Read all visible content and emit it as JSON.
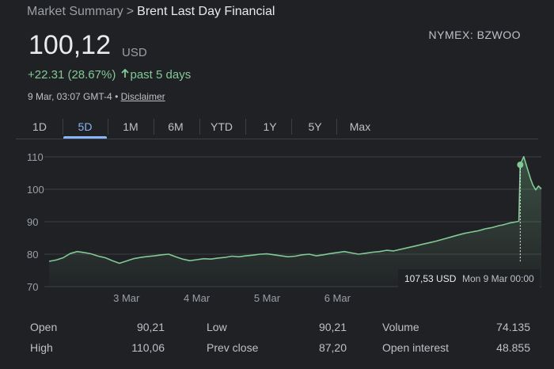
{
  "breadcrumb": {
    "parent": "Market Summary",
    "separator": ">",
    "current": "Brent Last Day Financial"
  },
  "ticker": "NYMEX: BZWOO",
  "quote": {
    "price": "100,12",
    "currency": "USD",
    "change": "+22.31 (28.67%)",
    "period": "past 5 days",
    "timestamp": "9 Mar, 03:07 GMT-4",
    "bullet": "•",
    "disclaimer": "Disclaimer"
  },
  "tabs": [
    "1D",
    "5D",
    "1M",
    "6M",
    "YTD",
    "1Y",
    "5Y",
    "Max"
  ],
  "active_tab": "5D",
  "colors": {
    "line": "#81c995",
    "accent": "#8ab4f8",
    "background": "#202124",
    "grid": "#3c4043"
  },
  "chart_data": {
    "type": "area",
    "y_ticks": [
      70,
      80,
      90,
      100,
      110
    ],
    "ylim": [
      70,
      110
    ],
    "x_labels": [
      "3 Mar",
      "4 Mar",
      "5 Mar",
      "6 Mar"
    ],
    "grid": true,
    "series": [
      {
        "x": [
          0.0,
          0.1,
          0.2,
          0.3,
          0.4,
          0.5,
          0.6,
          0.7,
          0.8,
          0.9,
          1.0,
          1.1,
          1.2,
          1.3,
          1.4,
          1.5,
          1.6,
          1.7,
          1.8,
          1.9,
          2.0,
          2.1,
          2.2,
          2.3,
          2.4,
          2.5,
          2.6,
          2.7,
          2.8,
          2.9,
          3.0,
          3.1,
          3.2,
          3.3,
          3.4,
          3.5,
          3.6,
          3.7,
          3.8,
          3.9,
          4.0,
          4.1,
          4.2,
          4.3,
          4.4,
          4.5,
          4.6,
          4.7,
          4.8,
          4.9,
          5.0,
          5.1,
          5.2,
          5.3,
          5.4,
          5.5,
          5.6,
          5.7,
          5.8,
          5.9,
          6.0,
          6.05,
          6.1,
          6.15,
          6.2,
          6.25,
          6.3,
          6.35,
          6.4,
          6.45,
          6.5,
          6.55,
          6.6,
          6.65,
          6.68,
          6.7,
          6.72,
          6.75,
          6.8,
          6.85,
          6.88,
          6.92,
          6.96,
          7.0
        ],
        "values": [
          77.8,
          78.2,
          78.9,
          80.2,
          80.8,
          80.5,
          80.1,
          79.4,
          78.9,
          78.0,
          77.2,
          77.9,
          78.6,
          79.0,
          79.3,
          79.5,
          79.8,
          80.0,
          79.2,
          78.5,
          78.0,
          78.3,
          78.6,
          78.5,
          78.8,
          79.0,
          79.4,
          79.2,
          79.5,
          79.7,
          80.0,
          80.1,
          79.8,
          79.5,
          79.2,
          79.4,
          79.8,
          80.0,
          79.5,
          79.8,
          80.2,
          80.5,
          80.8,
          80.4,
          80.0,
          80.3,
          80.6,
          80.8,
          81.2,
          81.0,
          81.5,
          82.0,
          82.5,
          83.0,
          83.5,
          84.0,
          84.6,
          85.2,
          85.8,
          86.4,
          86.8,
          87.0,
          87.2,
          87.5,
          87.8,
          88.0,
          88.2,
          88.5,
          88.8,
          89.0,
          89.3,
          89.6,
          89.8,
          90.0,
          90.21,
          107.53,
          108.6,
          110.06,
          106.5,
          103.0,
          101.3,
          99.8,
          101.0,
          100.12
        ]
      }
    ],
    "tooltip": {
      "value": "107,53 USD",
      "date": "Mon 9 Mar 00:00"
    }
  },
  "stats": [
    {
      "label": "Open",
      "value": "90,21"
    },
    {
      "label": "High",
      "value": "110,06"
    },
    {
      "label": "Low",
      "value": "90,21"
    },
    {
      "label": "Prev close",
      "value": "87,20"
    },
    {
      "label": "Volume",
      "value": "74.135"
    },
    {
      "label": "Open interest",
      "value": "48.855"
    }
  ]
}
